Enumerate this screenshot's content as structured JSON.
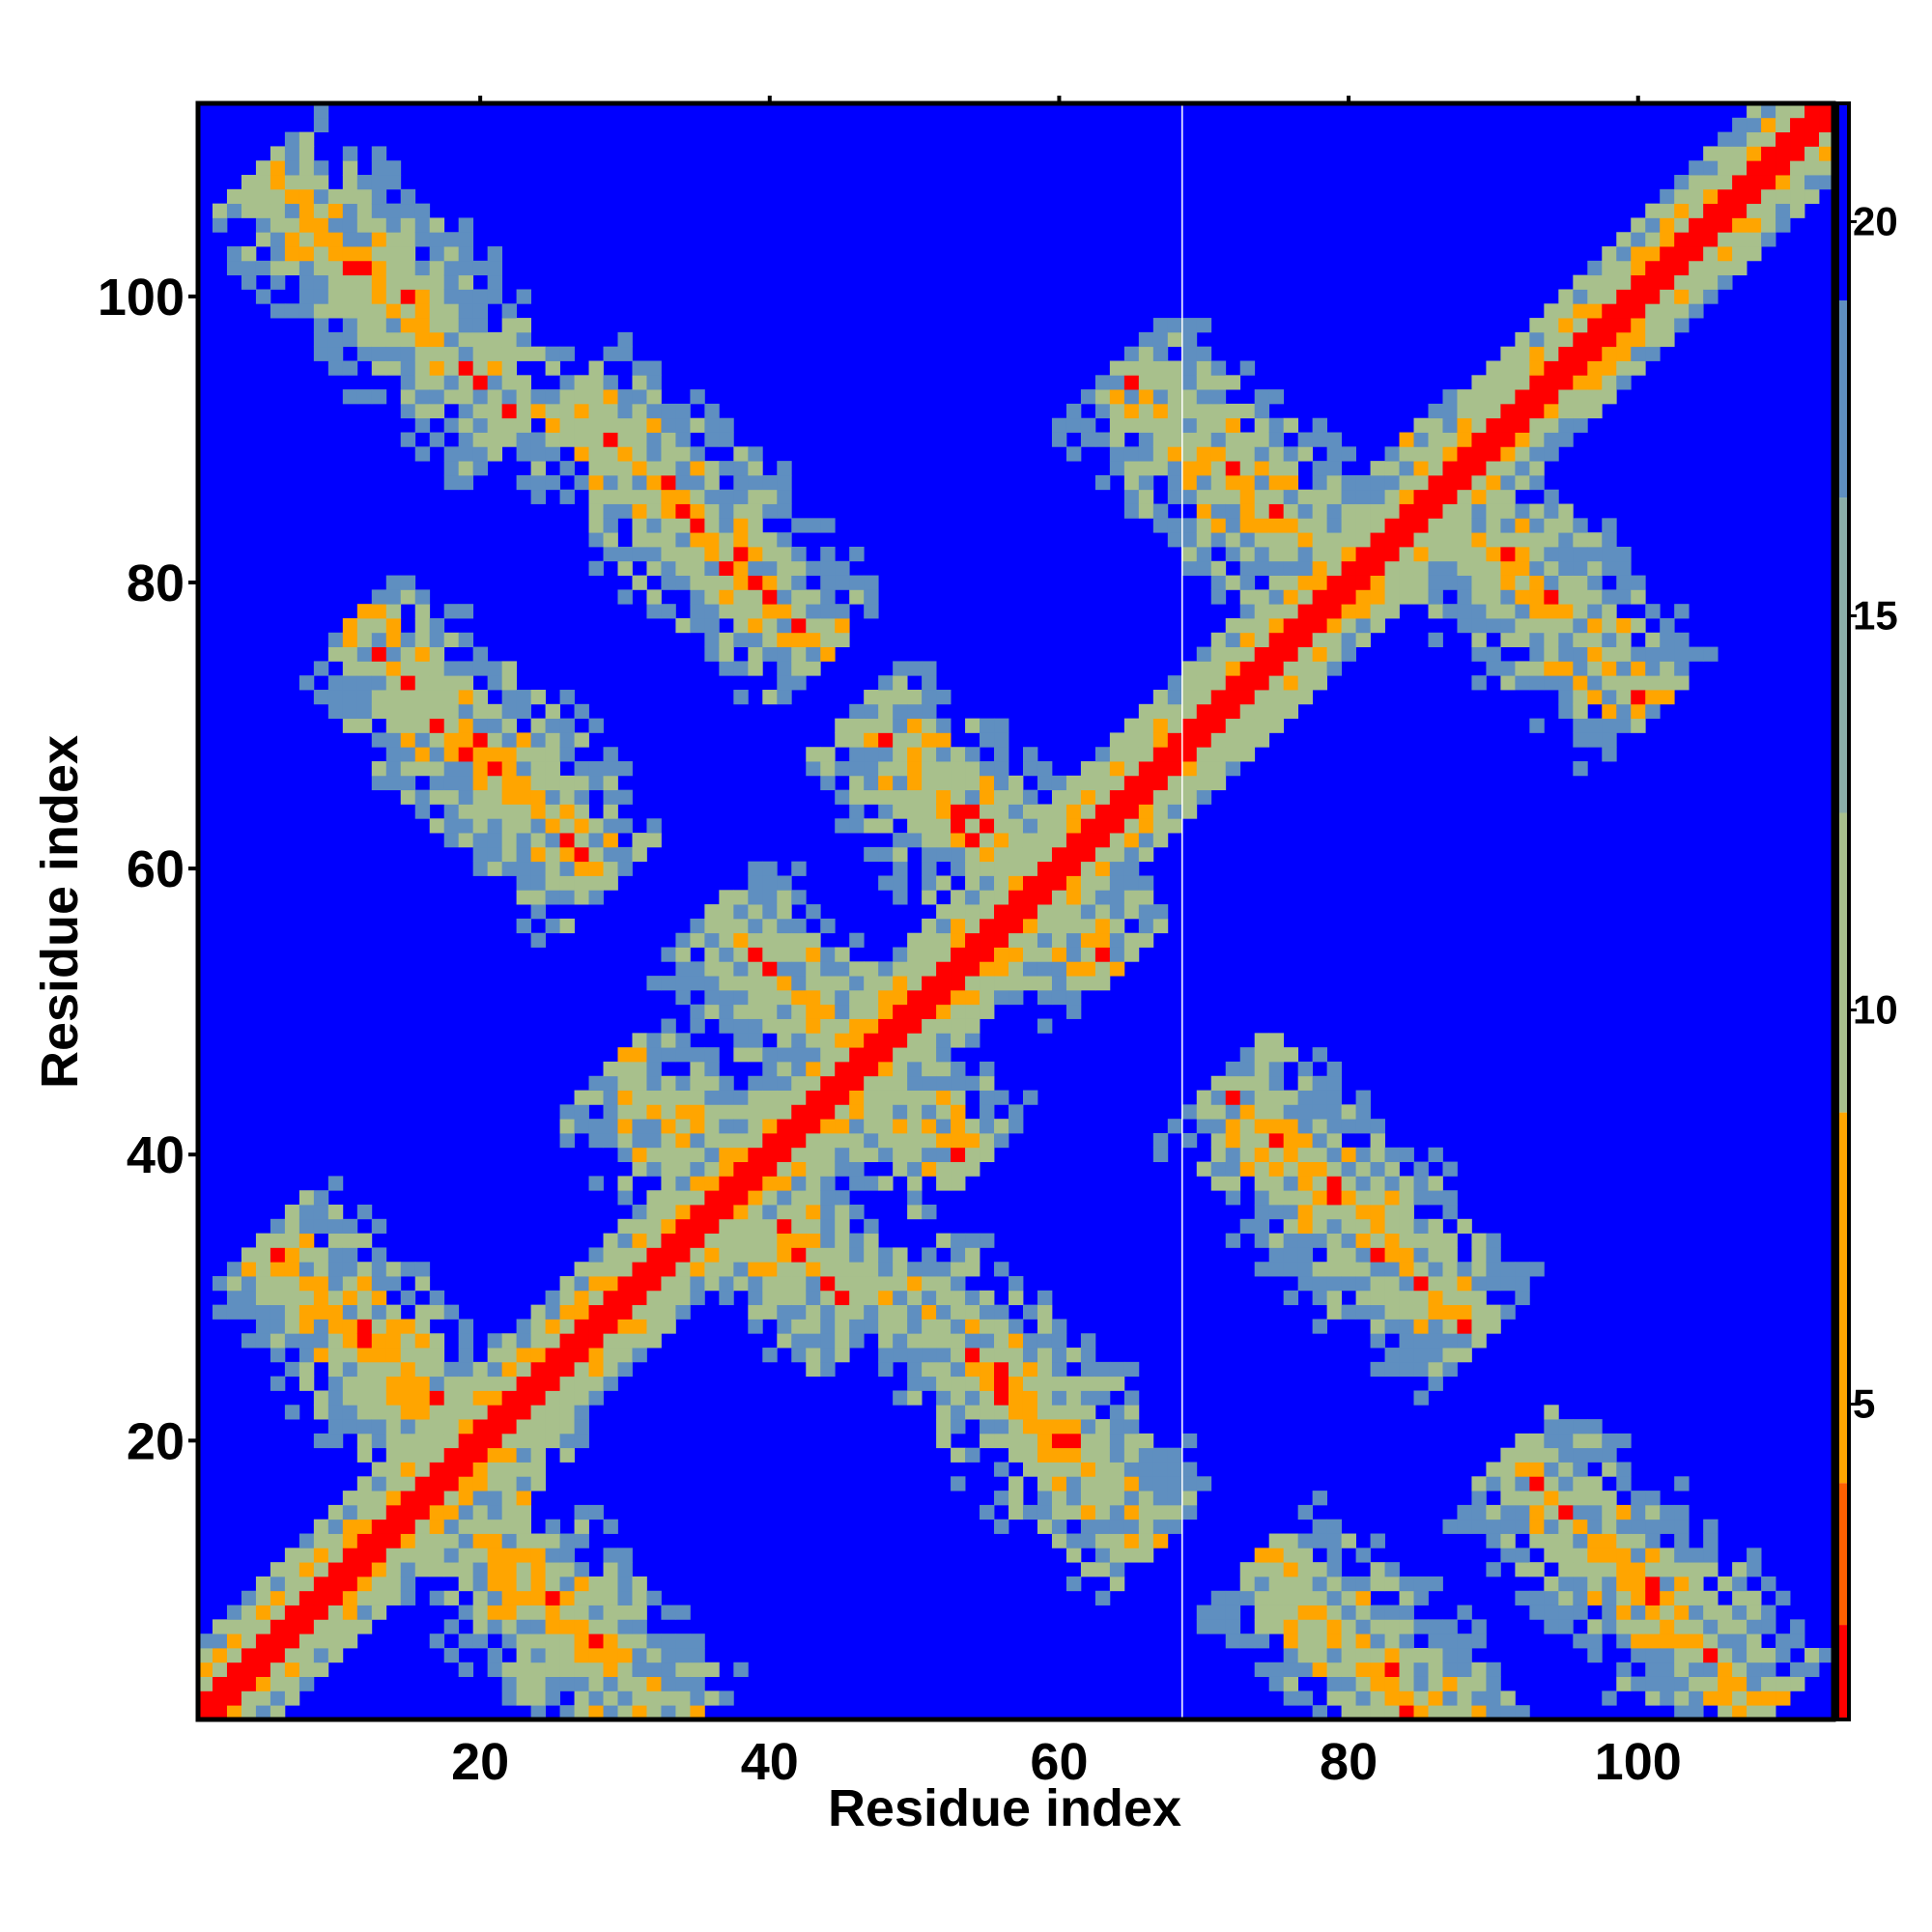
{
  "chart_data": {
    "type": "heatmap",
    "title": "",
    "xlabel": "Residue index",
    "ylabel": "Residue index",
    "n_residues": 113,
    "xlim": [
      1,
      113
    ],
    "ylim": [
      1,
      113
    ],
    "x_ticks": [
      {
        "value": 20,
        "label": "20"
      },
      {
        "value": 40,
        "label": "40"
      },
      {
        "value": 60,
        "label": "60"
      },
      {
        "value": 80,
        "label": "80"
      },
      {
        "value": 100,
        "label": "100"
      }
    ],
    "y_ticks": [
      {
        "value": 20,
        "label": "20"
      },
      {
        "value": 40,
        "label": "40"
      },
      {
        "value": 60,
        "label": "60"
      },
      {
        "value": 80,
        "label": "80"
      },
      {
        "value": 100,
        "label": "100"
      }
    ],
    "colorbar": {
      "range": [
        1,
        21.5
      ],
      "ticks": [
        {
          "value": 5,
          "label": "5"
        },
        {
          "value": 10,
          "label": "10"
        },
        {
          "value": 15,
          "label": "15"
        },
        {
          "value": 20,
          "label": "20"
        }
      ]
    },
    "colors": {
      "background": "#0000ff",
      "contact": "#ff0000",
      "near": "#ffa500",
      "mid": "#a8c08c",
      "far": "#5f8fc0"
    },
    "features": {
      "main_diagonal": true,
      "anti_diagonal_centers": [
        [
          14,
          100
        ],
        [
          35,
          84
        ],
        [
          20,
          68
        ],
        [
          55,
          62
        ],
        [
          73,
          86
        ],
        [
          92,
          80
        ],
        [
          45,
          48
        ],
        [
          38,
          37
        ],
        [
          80,
          36
        ],
        [
          14,
          25
        ],
        [
          58,
          22
        ],
        [
          25,
          8
        ],
        [
          100,
          10
        ],
        [
          83,
          3
        ]
      ]
    }
  }
}
